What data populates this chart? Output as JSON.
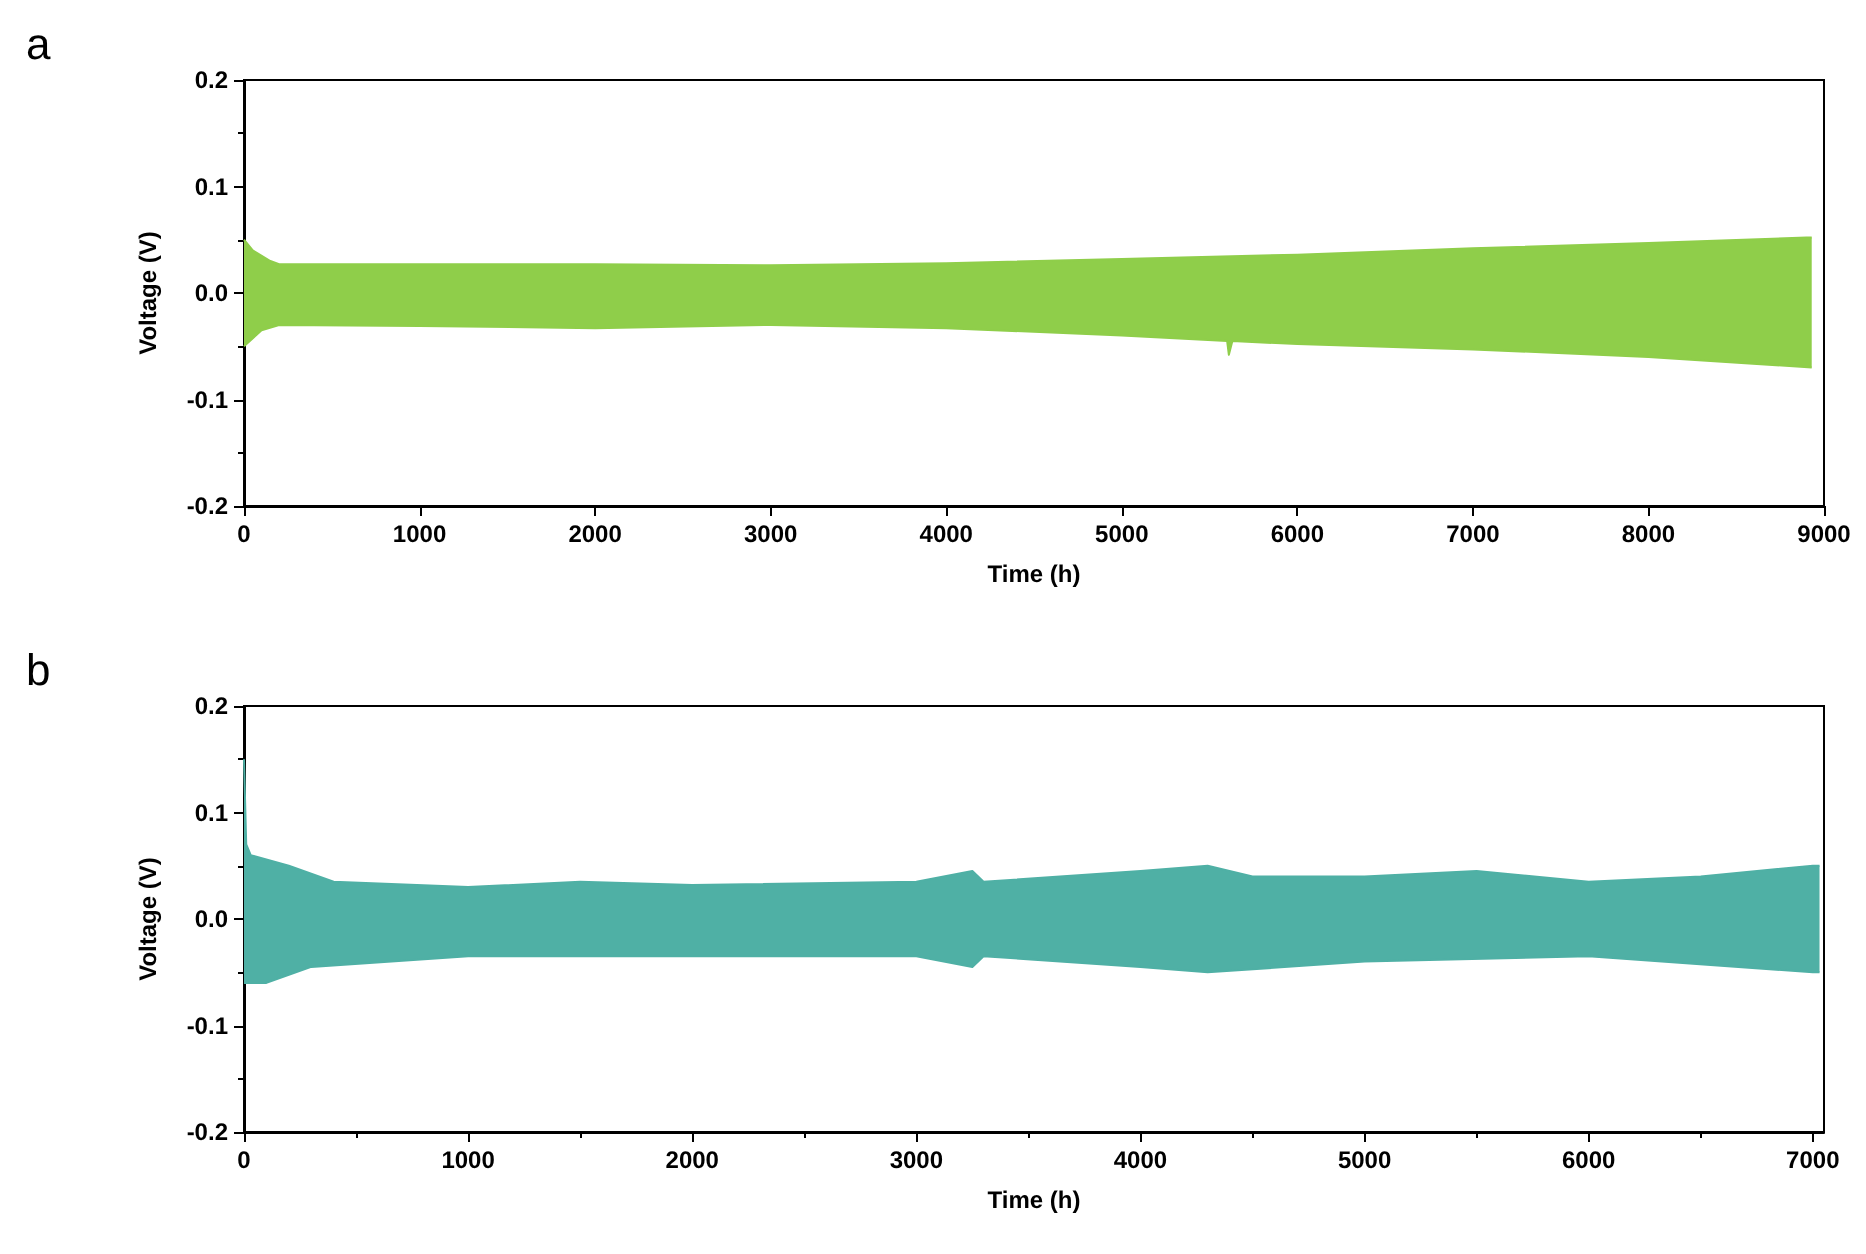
{
  "chart_data": [
    {
      "type": "area",
      "title": "a",
      "xlabel": "Time (h)",
      "ylabel": "Voltage (V)",
      "xlim": [
        0,
        9000
      ],
      "xticks": [
        0,
        1000,
        2000,
        3000,
        4000,
        5000,
        6000,
        7000,
        8000,
        9000
      ],
      "ylim": [
        -0.2,
        0.2
      ],
      "yticks": [
        -0.2,
        -0.1,
        {
          "value": 0,
          "label": "0.0"
        },
        0.1,
        0.2
      ],
      "grid": false,
      "marker": "none",
      "series": [
        {
          "color": "#8fce4a",
          "x": [
            0,
            50,
            150,
            200,
            1000,
            2000,
            3000,
            4000,
            5000,
            6000,
            7000,
            8000,
            8900,
            8930
          ],
          "values": [
            0.05,
            0.04,
            0.03,
            0.027,
            0.027,
            0.027,
            0.026,
            0.028,
            0.032,
            0.036,
            0.042,
            0.047,
            0.052,
            0.052
          ]
        },
        {
          "color": "#8fce4a",
          "x": [
            0,
            100,
            200,
            1000,
            2000,
            3000,
            4000,
            5000,
            5600,
            5610,
            5630,
            6000,
            7000,
            8000,
            8930
          ],
          "values": [
            -0.05,
            -0.035,
            -0.03,
            -0.031,
            -0.033,
            -0.03,
            -0.033,
            -0.04,
            -0.045,
            -0.058,
            -0.045,
            -0.048,
            -0.053,
            -0.06,
            -0.07
          ]
        }
      ]
    },
    {
      "type": "area",
      "title": "b",
      "xlabel": "Time (h)",
      "ylabel": "Voltage (V)",
      "xlim": [
        0,
        7050
      ],
      "xticks": [
        0,
        1000,
        2000,
        3000,
        4000,
        5000,
        6000,
        7000
      ],
      "ylim": [
        -0.2,
        0.2
      ],
      "yticks": [
        -0.2,
        -0.1,
        {
          "value": 0,
          "label": "0.0"
        },
        0.1,
        0.2
      ],
      "grid": false,
      "marker": "none",
      "series": [
        {
          "color": "#4fb0a5",
          "x": [
            0,
            10,
            30,
            200,
            400,
            1000,
            1500,
            2000,
            3000,
            3250,
            3300,
            4000,
            4300,
            4500,
            5000,
            5500,
            6000,
            6500,
            7000,
            7030
          ],
          "values": [
            0.15,
            0.07,
            0.06,
            0.05,
            0.035,
            0.03,
            0.035,
            0.032,
            0.035,
            0.045,
            0.035,
            0.045,
            0.05,
            0.04,
            0.04,
            0.045,
            0.035,
            0.04,
            0.05,
            0.05
          ]
        },
        {
          "color": "#4fb0a5",
          "x": [
            0,
            100,
            300,
            1000,
            2000,
            3000,
            3250,
            3300,
            4000,
            4300,
            5000,
            6000,
            7000,
            7030
          ],
          "values": [
            -0.06,
            -0.06,
            -0.045,
            -0.035,
            -0.035,
            -0.035,
            -0.045,
            -0.035,
            -0.045,
            -0.05,
            -0.04,
            -0.035,
            -0.05,
            -0.05
          ]
        }
      ]
    }
  ]
}
